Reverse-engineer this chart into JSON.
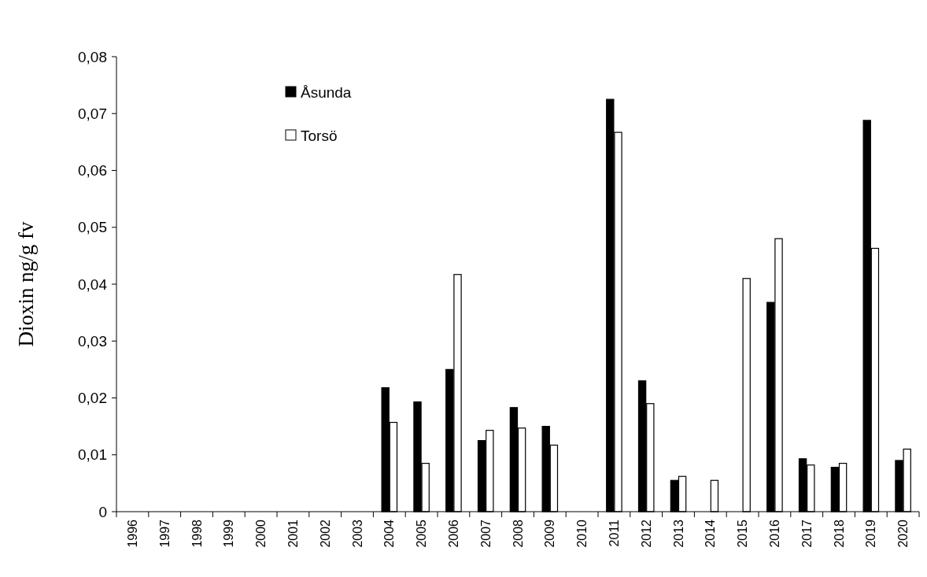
{
  "chart_data": {
    "type": "bar",
    "ylabel": "Dioxin ng/g fv",
    "categories": [
      "1996",
      "1997",
      "1998",
      "1999",
      "2000",
      "2001",
      "2002",
      "2003",
      "2004",
      "2005",
      "2006",
      "2007",
      "2008",
      "2009",
      "2010",
      "2011",
      "2012",
      "2013",
      "2014",
      "2015",
      "2016",
      "2017",
      "2018",
      "2019",
      "2020"
    ],
    "series": [
      {
        "name": "Åsunda",
        "color": "#000000",
        "values": [
          null,
          null,
          null,
          null,
          null,
          null,
          null,
          null,
          0.0218,
          0.0193,
          0.025,
          0.0125,
          0.0183,
          0.015,
          null,
          0.0725,
          0.023,
          0.0055,
          null,
          null,
          0.0368,
          0.0093,
          0.0078,
          0.0688,
          0.009
        ]
      },
      {
        "name": "Torsö",
        "color": "#ffffff",
        "values": [
          null,
          null,
          null,
          null,
          null,
          null,
          null,
          null,
          0.0157,
          0.0085,
          0.0417,
          0.0143,
          0.0147,
          0.0117,
          null,
          0.0667,
          0.019,
          0.0062,
          0.0055,
          0.041,
          0.048,
          0.0082,
          0.0085,
          0.0463,
          0.011
        ]
      }
    ],
    "ylim": [
      0,
      0.08
    ],
    "yticks": [
      {
        "value": 0,
        "label": "0"
      },
      {
        "value": 0.01,
        "label": "0,01"
      },
      {
        "value": 0.02,
        "label": "0,02"
      },
      {
        "value": 0.03,
        "label": "0,03"
      },
      {
        "value": 0.04,
        "label": "0,04"
      },
      {
        "value": 0.05,
        "label": "0,05"
      },
      {
        "value": 0.06,
        "label": "0,06"
      },
      {
        "value": 0.07,
        "label": "0,07"
      },
      {
        "value": 0.08,
        "label": "0,08"
      }
    ],
    "legend": "top left"
  }
}
